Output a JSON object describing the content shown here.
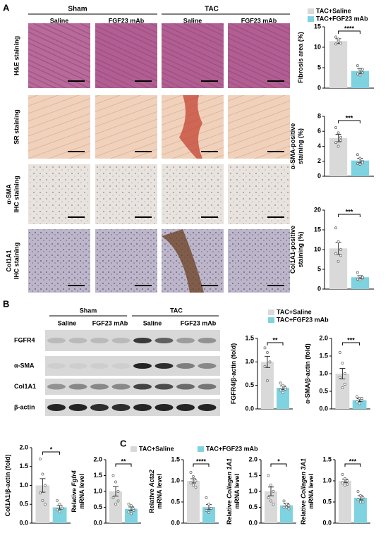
{
  "panel_labels": [
    "A",
    "B",
    "C"
  ],
  "legend": {
    "names": [
      "TAC+Saline",
      "TAC+FGF23 mAb"
    ],
    "colors": [
      "#d9d9d9",
      "#7fd3e0"
    ]
  },
  "histology": {
    "groups": [
      "Sham",
      "TAC"
    ],
    "treatments": [
      "Saline",
      "FGF23 mAb",
      "Saline",
      "FGF23 mAb"
    ],
    "rows": [
      [
        "H&E staining"
      ],
      [
        "SR staining"
      ],
      [
        "α-SMA",
        "IHC staining"
      ],
      [
        "Col1A1",
        "IHC staining"
      ]
    ]
  },
  "blot": {
    "groups": [
      "Sham",
      "TAC"
    ],
    "treatments": [
      "Saline",
      "FGF23 mAb",
      "Saline",
      "FGF23 mAb"
    ],
    "proteins": [
      "FGFR4",
      "α-SMA",
      "Col1A1",
      "β-actin"
    ]
  },
  "chart_data": [
    {
      "type": "bar",
      "ylabel": [
        "Fibrosis area (%)"
      ],
      "values": [
        11.5,
        4.2
      ],
      "errors": [
        0.6,
        0.6
      ],
      "points": [
        [
          12.5,
          11.5,
          11,
          10.8,
          12
        ],
        [
          5.5,
          4.5,
          3.8,
          3.5,
          3.2,
          4.6
        ]
      ],
      "sig": "****",
      "ylim": [
        0,
        15
      ],
      "yticks": [
        0,
        5,
        10,
        15
      ]
    },
    {
      "type": "bar",
      "ylabel": [
        "α-SMA-positive",
        "staining (%)"
      ],
      "values": [
        5.1,
        2.1
      ],
      "errors": [
        0.5,
        0.3
      ],
      "points": [
        [
          6.5,
          5.8,
          5.2,
          4.5,
          4.0,
          4.8
        ],
        [
          2.9,
          2.4,
          2.0,
          1.7,
          1.6,
          1.8
        ]
      ],
      "sig": "***",
      "ylim": [
        0,
        8
      ],
      "yticks": [
        0,
        2,
        4,
        6,
        8
      ]
    },
    {
      "type": "bar",
      "ylabel": [
        "Col1A1-positive",
        "staining (%)"
      ],
      "values": [
        10.3,
        3.0
      ],
      "errors": [
        1.5,
        0.4
      ],
      "points": [
        [
          15.5,
          12,
          10,
          9,
          7,
          8.5
        ],
        [
          4.2,
          3.2,
          2.8,
          2.5,
          2.3,
          3.0
        ]
      ],
      "sig": "***",
      "ylim": [
        0,
        20
      ],
      "yticks": [
        0,
        5,
        10,
        15,
        20
      ]
    },
    {
      "type": "bar",
      "ylabel": [
        "FGFR4/β-actin (fold)"
      ],
      "values": [
        1.0,
        0.45
      ],
      "errors": [
        0.12,
        0.04
      ],
      "points": [
        [
          1.3,
          1.2,
          1.0,
          0.9,
          0.6
        ],
        [
          0.55,
          0.5,
          0.45,
          0.4,
          0.35,
          0.42
        ]
      ],
      "sig": "**",
      "ylim": [
        0,
        1.5
      ],
      "yticks": [
        {
          "value": 0,
          "label": "0.0"
        },
        0.5,
        {
          "value": 1,
          "label": "1.0"
        },
        1.5
      ]
    },
    {
      "type": "bar",
      "ylabel": [
        "α-SMA/β-actin (fold)"
      ],
      "values": [
        1.0,
        0.25
      ],
      "errors": [
        0.15,
        0.04
      ],
      "points": [
        [
          1.6,
          1.3,
          1.0,
          0.9,
          0.6,
          0.7
        ],
        [
          0.35,
          0.3,
          0.25,
          0.2,
          0.15,
          0.3
        ]
      ],
      "sig": "***",
      "ylim": [
        0,
        2
      ],
      "yticks": [
        {
          "value": 0,
          "label": "0.0"
        },
        0.5,
        {
          "value": 1,
          "label": "1.0"
        },
        1.5,
        {
          "value": 2,
          "label": "2.0"
        }
      ]
    },
    {
      "type": "bar",
      "ylabel": [
        "Col1A1/β-actin (fold)"
      ],
      "values": [
        1.0,
        0.42
      ],
      "errors": [
        0.18,
        0.05
      ],
      "points": [
        [
          1.7,
          1.3,
          1.0,
          0.8,
          0.6,
          0.5
        ],
        [
          0.6,
          0.5,
          0.4,
          0.35,
          0.3,
          0.4
        ]
      ],
      "sig": "*",
      "ylim": [
        0,
        2
      ],
      "yticks": [
        {
          "value": 0,
          "label": "0.0"
        },
        0.5,
        {
          "value": 1,
          "label": "1.0"
        },
        1.5,
        {
          "value": 2,
          "label": "2.0"
        }
      ]
    },
    {
      "type": "bar",
      "ylabel": [
        "Relative",
        "mRNA level"
      ],
      "gene": "Fgfr4",
      "values": [
        1.0,
        0.45
      ],
      "errors": [
        0.15,
        0.06
      ],
      "points": [
        [
          1.5,
          1.3,
          1.0,
          0.8,
          0.6,
          0.7
        ],
        [
          0.6,
          0.55,
          0.45,
          0.35,
          0.3,
          0.4
        ]
      ],
      "sig": "**",
      "ylim": [
        0,
        2
      ],
      "yticks": [
        {
          "value": 0,
          "label": "0.0"
        },
        0.5,
        {
          "value": 1,
          "label": "1.0"
        },
        1.5,
        {
          "value": 2,
          "label": "2.0"
        }
      ]
    },
    {
      "type": "bar",
      "ylabel": [
        "Relative",
        "mRNA level"
      ],
      "gene": "Acta2",
      "values": [
        1.0,
        0.38
      ],
      "errors": [
        0.05,
        0.06
      ],
      "points": [
        [
          1.2,
          1.1,
          1.0,
          0.95,
          0.9,
          0.85
        ],
        [
          0.6,
          0.45,
          0.35,
          0.3,
          0.25,
          0.35
        ]
      ],
      "sig": "****",
      "ylim": [
        0,
        1.5
      ],
      "yticks": [
        {
          "value": 0,
          "label": "0.0"
        },
        0.5,
        {
          "value": 1,
          "label": "1.0"
        },
        1.5
      ]
    },
    {
      "type": "bar",
      "ylabel": [
        "Relative",
        "mRNA level"
      ],
      "gene": "Collagen 1A1",
      "values": [
        1.0,
        0.56
      ],
      "errors": [
        0.14,
        0.05
      ],
      "points": [
        [
          1.5,
          1.2,
          1.0,
          0.8,
          0.7,
          0.6
        ],
        [
          0.7,
          0.6,
          0.55,
          0.5,
          0.5,
          0.45
        ]
      ],
      "sig": "*",
      "ylim": [
        0,
        2
      ],
      "yticks": [
        {
          "value": 0,
          "label": "0.0"
        },
        0.5,
        {
          "value": 1,
          "label": "1.0"
        },
        1.5,
        {
          "value": 2,
          "label": "2.0"
        }
      ]
    },
    {
      "type": "bar",
      "ylabel": [
        "Relative",
        "mRNA level"
      ],
      "gene": "Collagen 3A1",
      "values": [
        1.0,
        0.6
      ],
      "errors": [
        0.04,
        0.05
      ],
      "points": [
        [
          1.15,
          1.05,
          1.0,
          0.95,
          0.9,
          0.92
        ],
        [
          0.75,
          0.65,
          0.6,
          0.55,
          0.5,
          0.5
        ]
      ],
      "sig": "***",
      "ylim": [
        0,
        1.5
      ],
      "yticks": [
        {
          "value": 0,
          "label": "0.0"
        },
        0.5,
        {
          "value": 1,
          "label": "1.0"
        },
        1.5
      ]
    }
  ]
}
